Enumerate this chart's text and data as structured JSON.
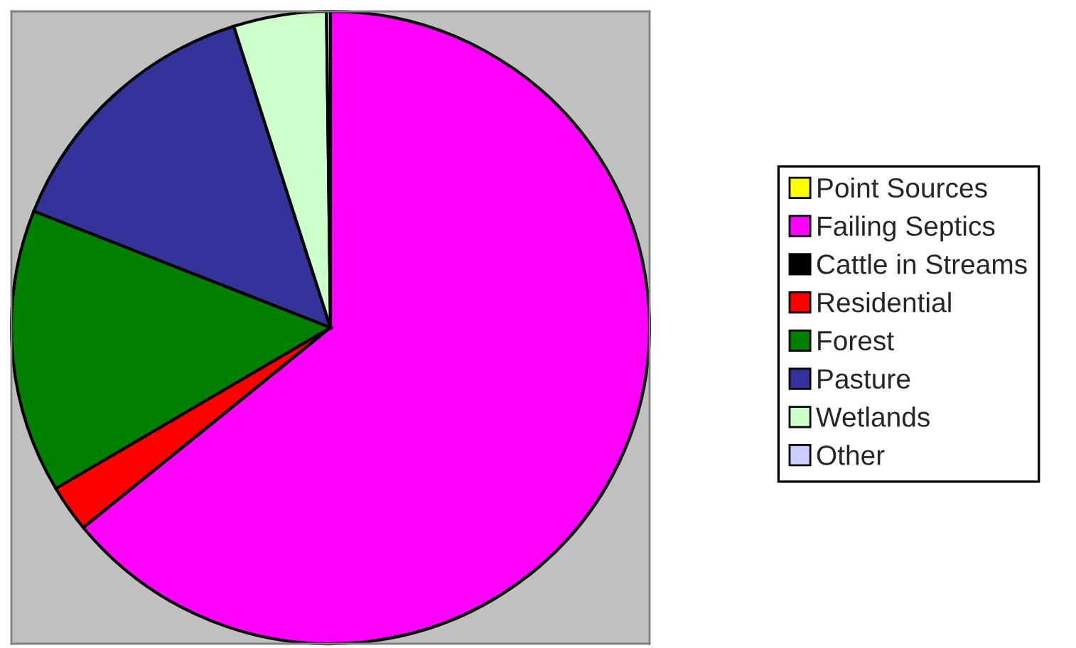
{
  "chart_data": {
    "type": "pie",
    "categories": [
      "Point Sources",
      "Failing Septics",
      "Cattle in Streams",
      "Residential",
      "Forest",
      "Pasture",
      "Wetlands",
      "Other"
    ],
    "values": [
      0,
      64.1,
      0,
      2.4,
      14.5,
      14.1,
      4.7,
      0.2
    ],
    "colors": [
      "#ffff00",
      "#ff00ff",
      "#000000",
      "#ff0000",
      "#008000",
      "#333399",
      "#ccffcc",
      "#ccccff"
    ],
    "legend": "right"
  }
}
